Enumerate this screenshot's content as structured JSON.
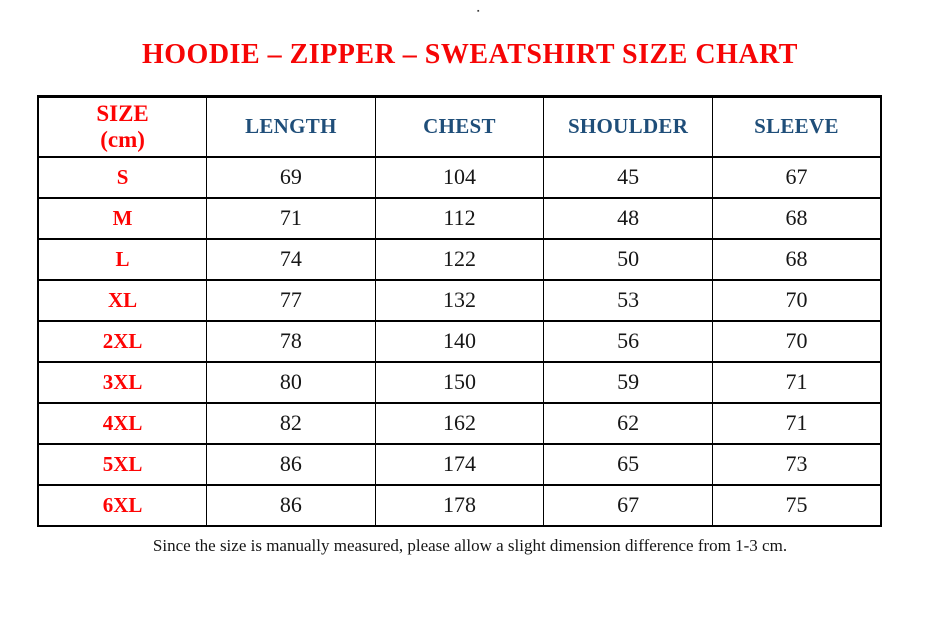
{
  "page": {
    "background": "#ffffff",
    "stray_mark": "▪"
  },
  "colors": {
    "title_red": "#f60505",
    "header_blue": "#1f4e79",
    "size_red": "#fd0404",
    "number_black": "#161616",
    "border_black": "#000000"
  },
  "chart_data": {
    "type": "table",
    "title": "HOODIE – ZIPPER – SWEATSHIRT SIZE CHART",
    "unit": "cm",
    "columns": [
      "SIZE\n(cm)",
      "LENGTH",
      "CHEST",
      "SHOULDER",
      "SLEEVE"
    ],
    "column_keys": [
      "size",
      "length",
      "chest",
      "shoulder",
      "sleeve"
    ],
    "rows": [
      {
        "size": "S",
        "length": 69,
        "chest": 104,
        "shoulder": 45,
        "sleeve": 67
      },
      {
        "size": "M",
        "length": 71,
        "chest": 112,
        "shoulder": 48,
        "sleeve": 68
      },
      {
        "size": "L",
        "length": 74,
        "chest": 122,
        "shoulder": 50,
        "sleeve": 68
      },
      {
        "size": "XL",
        "length": 77,
        "chest": 132,
        "shoulder": 53,
        "sleeve": 70
      },
      {
        "size": "2XL",
        "length": 78,
        "chest": 140,
        "shoulder": 56,
        "sleeve": 70
      },
      {
        "size": "3XL",
        "length": 80,
        "chest": 150,
        "shoulder": 59,
        "sleeve": 71
      },
      {
        "size": "4XL",
        "length": 82,
        "chest": 162,
        "shoulder": 62,
        "sleeve": 71
      },
      {
        "size": "5XL",
        "length": 86,
        "chest": 174,
        "shoulder": 65,
        "sleeve": 73
      },
      {
        "size": "6XL",
        "length": 86,
        "chest": 178,
        "shoulder": 67,
        "sleeve": 75
      }
    ],
    "note": "Since the size is manually measured, please allow a slight dimension difference from 1-3 cm."
  }
}
